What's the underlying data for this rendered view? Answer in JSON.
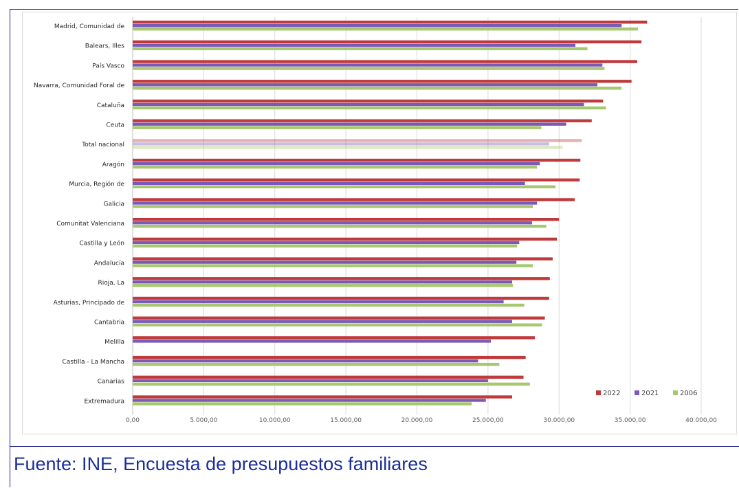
{
  "chart_data": {
    "type": "bar",
    "orientation": "horizontal",
    "title": "",
    "xlabel": "",
    "ylabel": "",
    "xlim": [
      0,
      40000
    ],
    "x_ticks": [
      "0,00",
      "5.000,00",
      "10.000,00",
      "15.000,00",
      "20.000,00",
      "25.000,00",
      "30.000,00",
      "35.000,00",
      "40.000,00"
    ],
    "grid": true,
    "legend_position": "bottom-right",
    "categories": [
      "Madrid, Comunidad de",
      "Balears, Illes",
      "País Vasco",
      "Navarra, Comunidad Foral de",
      "Cataluña",
      "Ceuta",
      "Total nacional",
      "Aragón",
      "Murcia, Región de",
      "Galicia",
      "Comunitat Valenciana",
      "Castilla y León",
      "Andalucía",
      "Rioja, La",
      "Asturias, Principado de",
      "Cantabria",
      "Melilla",
      "Castilla - La Mancha",
      "Canarias",
      "Extremadura"
    ],
    "highlighted_category": "Total nacional",
    "series": [
      {
        "name": "2022",
        "color": "#c0393b",
        "values": [
          36200,
          35800,
          35500,
          35100,
          33100,
          32300,
          31600,
          31500,
          31450,
          31100,
          30000,
          29850,
          29550,
          29350,
          29300,
          29000,
          28300,
          27650,
          27500,
          26700
        ]
      },
      {
        "name": "2021",
        "color": "#7b5ab7",
        "values": [
          34400,
          31150,
          33050,
          32700,
          31750,
          30500,
          29300,
          28650,
          27600,
          28450,
          28100,
          27200,
          27000,
          26700,
          26100,
          26700,
          25200,
          24300,
          25000,
          24850
        ]
      },
      {
        "name": "2006",
        "color": "#a6c86e",
        "values": [
          35550,
          32000,
          33200,
          34400,
          33300,
          28750,
          30250,
          28450,
          29750,
          28150,
          29100,
          27050,
          28150,
          26750,
          27550,
          28800,
          null,
          25800,
          27950,
          23850
        ]
      }
    ]
  },
  "footer": {
    "source": "Fuente: INE, Encuesta de presupuestos familiares"
  }
}
